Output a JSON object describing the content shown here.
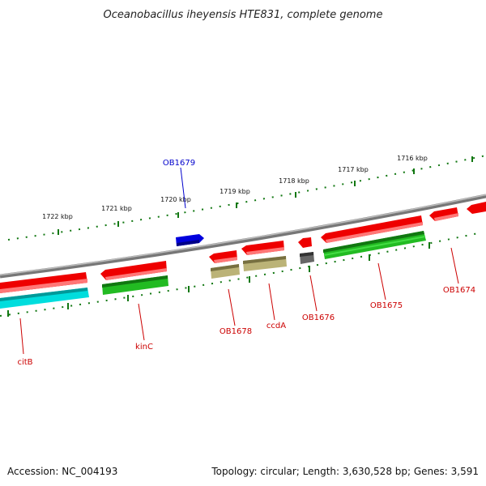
{
  "title": "Oceanobacillus iheyensis HTE831, complete genome",
  "footer": {
    "accession": "Accession: NC_004193",
    "summary": "Topology: circular; Length: 3,630,528 bp; Genes: 3,591"
  },
  "scale_labels": [
    "1722 kbp",
    "1721 kbp",
    "1720 kbp",
    "1719 kbp",
    "1718 kbp",
    "1717 kbp",
    "1716 kbp"
  ],
  "gene_labels": [
    {
      "text": "OB1679",
      "color": "#0000cc"
    },
    {
      "text": "citB",
      "color": "#cc0000"
    },
    {
      "text": "kinC",
      "color": "#cc0000"
    },
    {
      "text": "OB1678",
      "color": "#cc0000"
    },
    {
      "text": "ccdA",
      "color": "#cc0000"
    },
    {
      "text": "OB1676",
      "color": "#cc0000"
    },
    {
      "text": "OB1675",
      "color": "#cc0000"
    },
    {
      "text": "OB1674",
      "color": "#cc0000"
    }
  ],
  "colors": {
    "backbone": "#888888",
    "tick": "#117711",
    "cds_forward": "#ee0000",
    "cds_reverse": "#22bb22",
    "cds_other": "#0000dd",
    "rna": "#00dddd",
    "misc": "#bbb377",
    "pseudo": "#666666"
  }
}
